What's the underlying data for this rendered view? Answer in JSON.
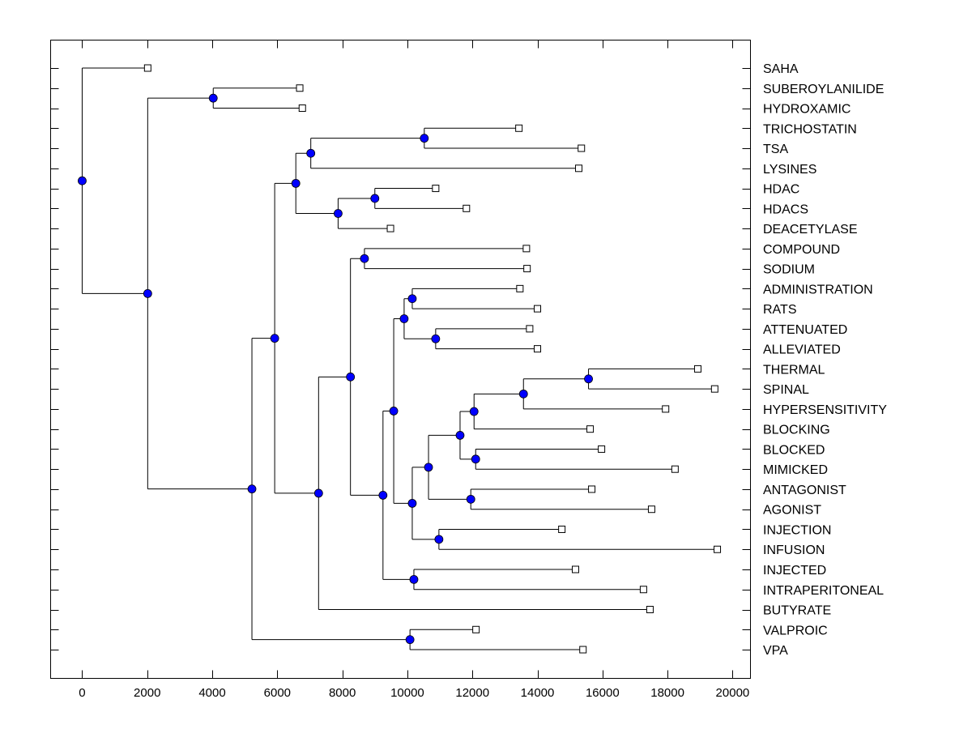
{
  "chart_data": {
    "type": "dendrogram",
    "title": "",
    "xlabel": "",
    "ylabel": "",
    "xlim": [
      -970,
      20550
    ],
    "xticks": [
      0,
      2000,
      4000,
      6000,
      8000,
      10000,
      12000,
      14000,
      16000,
      18000,
      20000
    ],
    "xtick_labels": [
      "0",
      "2000",
      "4000",
      "6000",
      "8000",
      "10000",
      "12000",
      "14000",
      "16000",
      "18000",
      "20000"
    ],
    "grid": false,
    "colors": {
      "node_fill": "#0000ff",
      "leaf_fill": "#ffffff",
      "line": "#000000"
    },
    "leaves": [
      {
        "label": "SAHA",
        "x": 2015
      },
      {
        "label": "SUBEROYLANILIDE",
        "x": 6690
      },
      {
        "label": "HYDROXAMIC",
        "x": 6770
      },
      {
        "label": "TRICHOSTATIN",
        "x": 13430
      },
      {
        "label": "TSA",
        "x": 15350
      },
      {
        "label": "LYSINES",
        "x": 15270
      },
      {
        "label": "HDAC",
        "x": 10870
      },
      {
        "label": "HDACS",
        "x": 11815
      },
      {
        "label": "DEACETYLASE",
        "x": 9480
      },
      {
        "label": "COMPOUND",
        "x": 13660
      },
      {
        "label": "SODIUM",
        "x": 13680
      },
      {
        "label": "ADMINISTRATION",
        "x": 13460
      },
      {
        "label": "RATS",
        "x": 14000
      },
      {
        "label": "ATTENUATED",
        "x": 13760
      },
      {
        "label": "ALLEVIATED",
        "x": 14000
      },
      {
        "label": "THERMAL",
        "x": 18930
      },
      {
        "label": "SPINAL",
        "x": 19450
      },
      {
        "label": "HYPERSENSITIVITY",
        "x": 17940
      },
      {
        "label": "BLOCKING",
        "x": 15620
      },
      {
        "label": "BLOCKED",
        "x": 15970
      },
      {
        "label": "MIMICKED",
        "x": 18230
      },
      {
        "label": "ANTAGONIST",
        "x": 15670
      },
      {
        "label": "AGONIST",
        "x": 17510
      },
      {
        "label": "INJECTION",
        "x": 14750
      },
      {
        "label": "INFUSION",
        "x": 19530
      },
      {
        "label": "INJECTED",
        "x": 15170
      },
      {
        "label": "INTRAPERITONEAL",
        "x": 17260
      },
      {
        "label": "BUTYRATE",
        "x": 17460
      },
      {
        "label": "VALPROIC",
        "x": 12110
      },
      {
        "label": "VPA",
        "x": 15400
      }
    ],
    "nodes": [
      {
        "id": "n_root",
        "x": 0,
        "children": [
          "L0",
          "n_2000"
        ]
      },
      {
        "id": "n_2000",
        "x": 2015,
        "children": [
          "n_4000",
          "n_5200"
        ]
      },
      {
        "id": "n_4000",
        "x": 4030,
        "children": [
          "L1",
          "L2"
        ]
      },
      {
        "id": "n_5200",
        "x": 5220,
        "children": [
          "n_5900",
          "n_valpa"
        ]
      },
      {
        "id": "n_valpa",
        "x": 10080,
        "children": [
          "L28",
          "L29"
        ]
      },
      {
        "id": "n_5900",
        "x": 5920,
        "children": [
          "n_6600",
          "n_7250"
        ]
      },
      {
        "id": "n_6600",
        "x": 6570,
        "children": [
          "n_7000",
          "n_7850"
        ]
      },
      {
        "id": "n_7000",
        "x": 7030,
        "children": [
          "n_10500",
          "L5"
        ]
      },
      {
        "id": "n_10500",
        "x": 10520,
        "children": [
          "L3",
          "L4"
        ]
      },
      {
        "id": "n_7850",
        "x": 7870,
        "children": [
          "n_9000",
          "L8"
        ]
      },
      {
        "id": "n_9000",
        "x": 9000,
        "children": [
          "L6",
          "L7"
        ]
      },
      {
        "id": "n_7250",
        "x": 7270,
        "children": [
          "n_8250",
          "L27"
        ]
      },
      {
        "id": "n_8250",
        "x": 8250,
        "children": [
          "n_8650",
          "n_9250"
        ]
      },
      {
        "id": "n_8650",
        "x": 8680,
        "children": [
          "L9",
          "L10"
        ]
      },
      {
        "id": "n_9250",
        "x": 9250,
        "children": [
          "n_9550",
          "n_10150b"
        ]
      },
      {
        "id": "n_9550",
        "x": 9580,
        "children": [
          "n_9850",
          "n_10150"
        ]
      },
      {
        "id": "n_9850",
        "x": 9900,
        "children": [
          "n_10150a",
          "n_10850"
        ]
      },
      {
        "id": "n_10150a",
        "x": 10150,
        "children": [
          "L11",
          "L12"
        ]
      },
      {
        "id": "n_10850",
        "x": 10870,
        "children": [
          "L13",
          "L14"
        ]
      },
      {
        "id": "n_10150",
        "x": 10150,
        "children": [
          "n_10650",
          "n_10950"
        ]
      },
      {
        "id": "n_10650",
        "x": 10650,
        "children": [
          "n_11600",
          "n_11950"
        ]
      },
      {
        "id": "n_11600",
        "x": 11620,
        "children": [
          "n_12050",
          "n_12100"
        ]
      },
      {
        "id": "n_12050",
        "x": 12050,
        "children": [
          "n_13550",
          "L18"
        ]
      },
      {
        "id": "n_13550",
        "x": 13570,
        "children": [
          "n_15550",
          "L17"
        ]
      },
      {
        "id": "n_15550",
        "x": 15570,
        "children": [
          "L15",
          "L16"
        ]
      },
      {
        "id": "n_12100",
        "x": 12100,
        "children": [
          "L19",
          "L20"
        ]
      },
      {
        "id": "n_11950",
        "x": 11950,
        "children": [
          "L21",
          "L22"
        ]
      },
      {
        "id": "n_10950",
        "x": 10970,
        "children": [
          "L23",
          "L24"
        ]
      },
      {
        "id": "n_10150b",
        "x": 10200,
        "children": [
          "L25",
          "L26"
        ]
      }
    ]
  }
}
